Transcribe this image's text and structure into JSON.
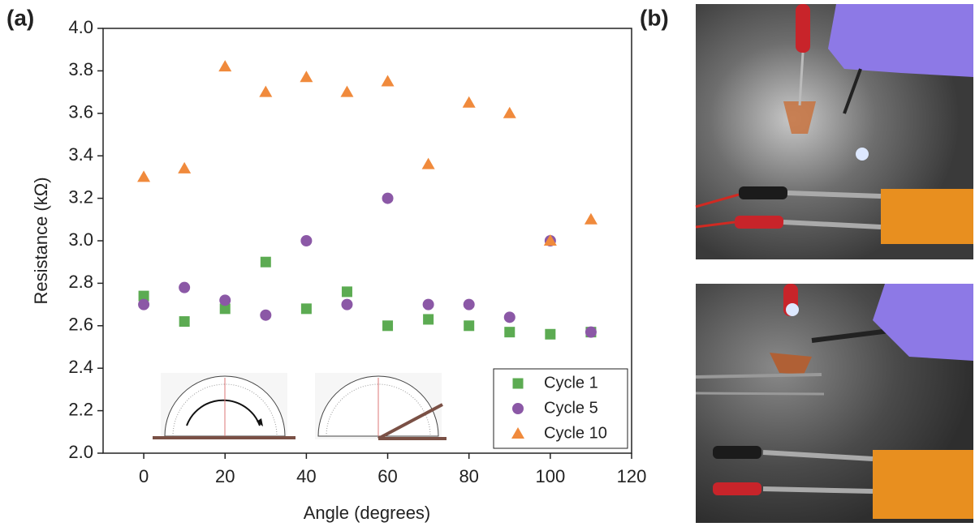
{
  "panel_labels": {
    "a": "(a)",
    "b": "(b)"
  },
  "chart_data": {
    "type": "scatter",
    "x_label": "Angle (degrees)",
    "y_label": "Resistance (kΩ)",
    "x": [
      0,
      10,
      20,
      30,
      40,
      50,
      60,
      70,
      80,
      90,
      100,
      110
    ],
    "series": [
      {
        "name": "Cycle 1",
        "color": "#5cab52",
        "marker": "square",
        "values": [
          2.74,
          2.62,
          2.68,
          2.9,
          2.68,
          2.76,
          2.6,
          2.63,
          2.6,
          2.57,
          2.56,
          2.57
        ]
      },
      {
        "name": "Cycle 5",
        "color": "#8b58a6",
        "marker": "circle",
        "values": [
          2.7,
          2.78,
          2.72,
          2.65,
          3.0,
          2.7,
          3.2,
          2.7,
          2.7,
          2.64,
          3.0,
          2.57
        ]
      },
      {
        "name": "Cycle 10",
        "color": "#f08a3c",
        "marker": "triangle",
        "values": [
          3.3,
          3.34,
          3.82,
          3.7,
          3.77,
          3.7,
          3.75,
          3.36,
          3.65,
          3.6,
          3.0,
          3.1
        ]
      }
    ],
    "xlim": [
      -10,
      120
    ],
    "xticks": [
      0,
      20,
      40,
      60,
      80,
      100,
      120
    ],
    "ylim": [
      2,
      4
    ],
    "yticks": [
      {
        "value": 2,
        "label": "2.0"
      },
      2.2,
      2.4,
      2.6,
      2.8,
      {
        "value": 3,
        "label": "3.0"
      },
      3.2,
      3.4,
      3.6,
      3.8,
      {
        "value": 4,
        "label": "4.0"
      }
    ],
    "legend": "lower right"
  }
}
